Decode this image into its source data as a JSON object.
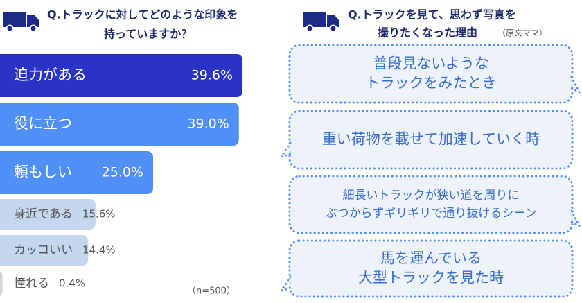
{
  "chart_data": {
    "type": "bar",
    "title": [
      "Q.トラックに対してどのような印象を",
      "持っていますか？"
    ],
    "categories": [
      "迫力がある",
      "役に立つ",
      "頼もしい",
      "身近である",
      "カッコいい",
      "憧れる"
    ],
    "values": [
      39.6,
      39.0,
      25.0,
      15.6,
      14.4,
      0.4
    ],
    "value_labels": [
      "39.6%",
      "39.0%",
      "25.0%",
      "15.6%",
      "14.4%",
      "0.4%"
    ],
    "colors": [
      "#2b33c6",
      "#4f8ff6",
      "#4f8ff6",
      "#c4d7ee",
      "#c4d7ee",
      "#d3d3d3"
    ],
    "label_colors": [
      "#ffffff",
      "#ffffff",
      "#ffffff",
      "#555555",
      "#555555",
      "#555555"
    ],
    "note": "（n=500）"
  },
  "reasons": {
    "title": [
      "Q.トラックを見て、思わず写真を",
      "撮りたくなった理由"
    ],
    "note": "（原文ママ）",
    "bubbles": [
      {
        "lines": [
          "普段見ないような",
          "トラックをみたとき"
        ]
      },
      {
        "lines": [
          "重い荷物を載せて加速していく時"
        ]
      },
      {
        "lines": [
          "細長いトラックが狭い道を周りに",
          "ぶつからずギリギリで通り抜けるシーン"
        ]
      },
      {
        "lines": [
          "馬を運んでいる",
          "大型トラックを見た時"
        ]
      }
    ]
  }
}
